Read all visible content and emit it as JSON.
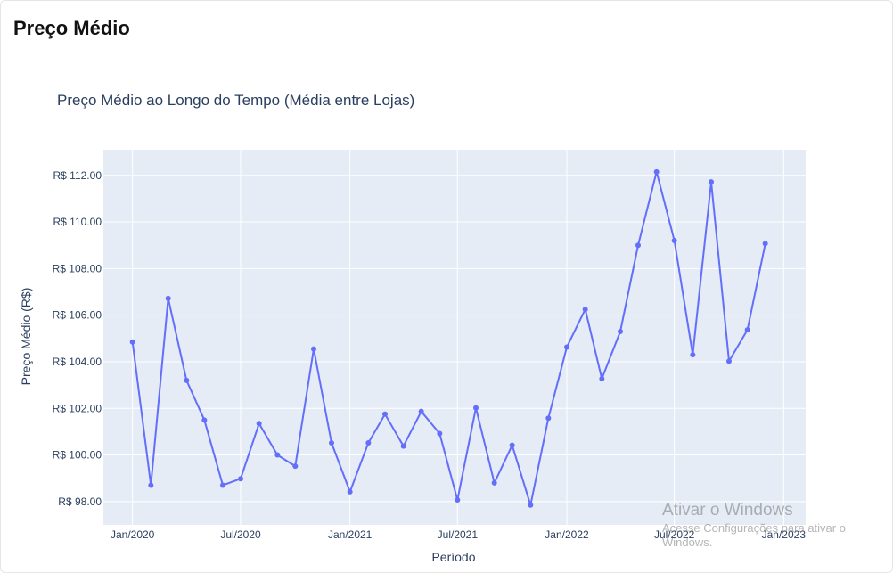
{
  "header": {
    "title": "Preço Médio"
  },
  "chart_data": {
    "type": "line",
    "title": "Preço Médio ao Longo do Tempo (Média entre Lojas)",
    "xlabel": "Período",
    "ylabel": "Preço Médio (R$)",
    "x_ticks": [
      {
        "date": "2020-01-01",
        "label": "Jan/2020"
      },
      {
        "date": "2020-07-01",
        "label": "Jul/2020"
      },
      {
        "date": "2021-01-01",
        "label": "Jan/2021"
      },
      {
        "date": "2021-07-01",
        "label": "Jul/2021"
      },
      {
        "date": "2022-01-01",
        "label": "Jan/2022"
      },
      {
        "date": "2022-07-01",
        "label": "Jul/2022"
      },
      {
        "date": "2023-01-01",
        "label": "Jan/2023"
      }
    ],
    "y_ticks": [
      {
        "value": 98,
        "label": "R$ 98.00"
      },
      {
        "value": 100,
        "label": "R$ 100.00"
      },
      {
        "value": 102,
        "label": "R$ 102.00"
      },
      {
        "value": 104,
        "label": "R$ 104.00"
      },
      {
        "value": 106,
        "label": "R$ 106.00"
      },
      {
        "value": 108,
        "label": "R$ 108.00"
      },
      {
        "value": 110,
        "label": "R$ 110.00"
      },
      {
        "value": 112,
        "label": "R$ 112.00"
      }
    ],
    "xlim": [
      "2019-11-13",
      "2023-02-07"
    ],
    "ylim": [
      97.0,
      113.1
    ],
    "grid": true,
    "series": [
      {
        "color": "#636efa",
        "x": [
          "2020-01-01",
          "2020-02-01",
          "2020-03-01",
          "2020-04-01",
          "2020-05-01",
          "2020-06-01",
          "2020-07-01",
          "2020-08-01",
          "2020-09-01",
          "2020-10-01",
          "2020-11-01",
          "2020-12-01",
          "2021-01-01",
          "2021-02-01",
          "2021-03-01",
          "2021-04-01",
          "2021-05-01",
          "2021-06-01",
          "2021-07-01",
          "2021-08-01",
          "2021-09-01",
          "2021-10-01",
          "2021-11-01",
          "2021-12-01",
          "2022-01-01",
          "2022-02-01",
          "2022-03-01",
          "2022-04-01",
          "2022-05-01",
          "2022-06-01",
          "2022-07-01",
          "2022-08-01",
          "2022-09-01",
          "2022-10-01",
          "2022-11-01",
          "2022-12-01"
        ],
        "values": [
          104.85,
          98.7,
          106.72,
          103.2,
          101.5,
          98.7,
          98.98,
          101.35,
          100.0,
          99.52,
          104.55,
          100.52,
          98.42,
          100.52,
          101.75,
          100.38,
          101.87,
          100.92,
          98.07,
          102.02,
          98.8,
          100.42,
          97.85,
          101.58,
          104.63,
          106.25,
          103.27,
          105.3,
          109.0,
          112.15,
          109.2,
          104.3,
          111.72,
          104.02,
          105.37,
          109.07
        ]
      }
    ]
  },
  "watermark": {
    "title": "Ativar o Windows",
    "subtitle": "Acesse Configurações para ativar o Windows."
  }
}
